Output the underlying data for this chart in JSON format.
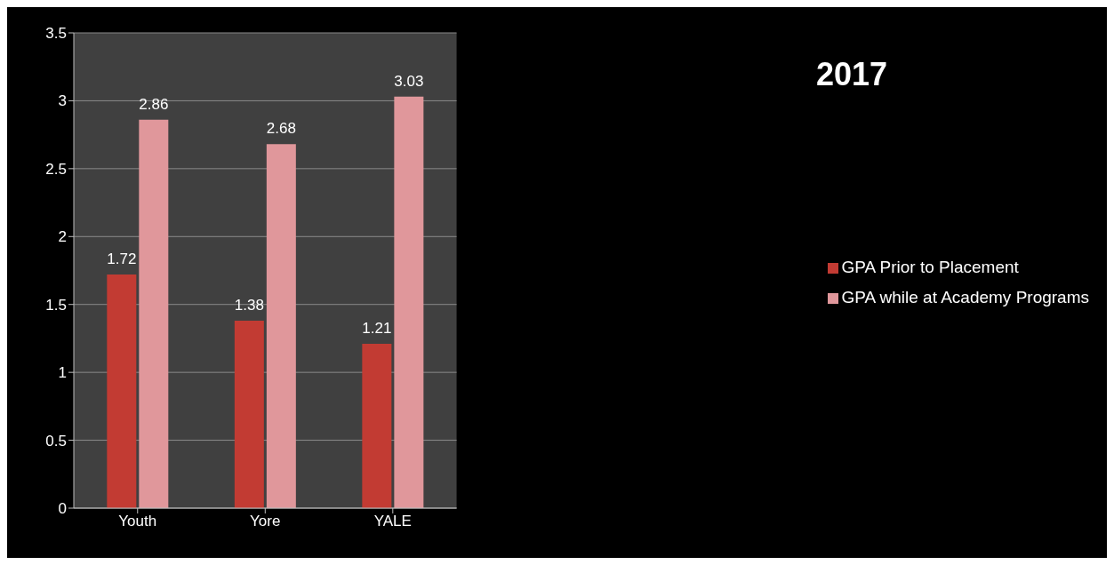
{
  "chart_data": {
    "type": "bar",
    "title": "2017",
    "categories": [
      "Youth",
      "Yore",
      "YALE"
    ],
    "series": [
      {
        "name": "GPA Prior to Placement",
        "color": "#c23b33",
        "values": [
          1.72,
          1.38,
          1.21
        ]
      },
      {
        "name": "GPA while at Academy Programs",
        "color": "#e0979b",
        "values": [
          2.86,
          2.68,
          3.03
        ]
      }
    ],
    "ylim": [
      0,
      3.5
    ],
    "yticks": [
      0,
      0.5,
      1,
      1.5,
      2,
      2.5,
      3,
      3.5
    ],
    "grid": "y",
    "legend": "right",
    "data_labels": true
  }
}
